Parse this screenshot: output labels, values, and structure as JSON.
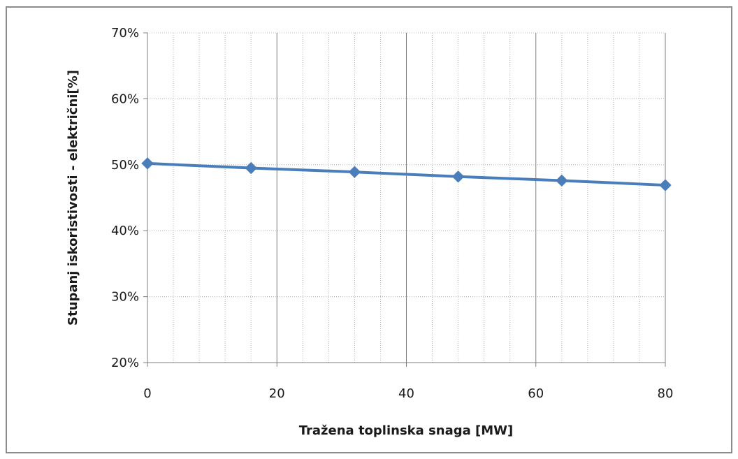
{
  "chart_data": {
    "type": "line",
    "title": "",
    "xlabel": "Tražena toplinska snaga [MW]",
    "ylabel": "Stupanj iskoristivosti - električni[%]",
    "x": [
      0,
      16,
      32,
      48,
      64,
      80
    ],
    "series": [
      {
        "values": [
          50.2,
          49.5,
          48.9,
          48.2,
          47.6,
          46.9
        ]
      }
    ],
    "xlim": [
      0,
      80
    ],
    "ylim": [
      20,
      70
    ],
    "x_ticks": [
      0,
      20,
      40,
      60,
      80
    ],
    "y_ticks": [
      20,
      30,
      40,
      50,
      60,
      70
    ],
    "x_tick_labels": [
      "0",
      "20",
      "40",
      "60",
      "80"
    ],
    "y_tick_labels": [
      "20%",
      "30%",
      "40%",
      "50%",
      "60%",
      "70%"
    ],
    "grid": true,
    "minor_grid": true,
    "legend": "none",
    "colors": {
      "series": "#4a7ebb",
      "major_grid": "#7f7f7f",
      "minor_grid": "#b3b3b3",
      "frame": "#8c8c8c"
    },
    "marker": "diamond"
  }
}
